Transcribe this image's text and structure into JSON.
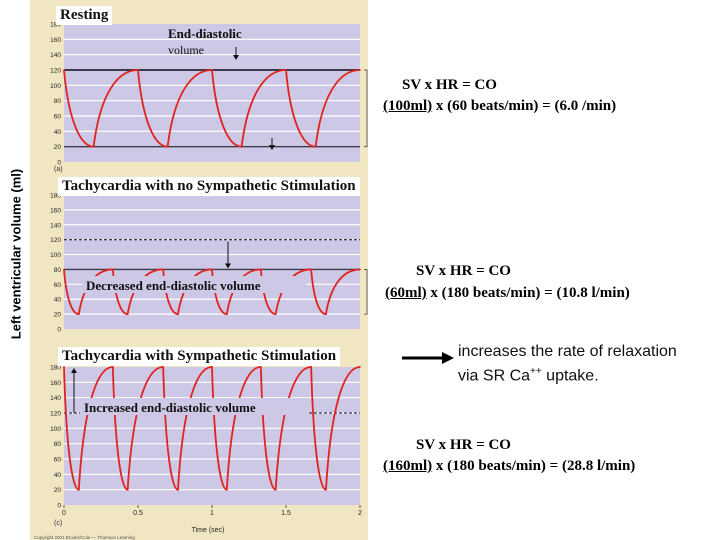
{
  "ylabel": "Left ventricular volume (ml)",
  "xlabel": "Time (sec)",
  "footer": "Copyright 2001 Brooks/Cole — Thomson Learning",
  "arrow_note": {
    "line1": "increases the rate of relaxation",
    "line2_pre": "via SR Ca",
    "line2_sup": "++",
    "line2_post": " uptake."
  },
  "colors": {
    "strip": "#f1e6c2",
    "plot_bg": "#cdc8e6",
    "grid": "#ffffff",
    "curve": "#e0241d",
    "reference": "#3a3a4a"
  },
  "panels": [
    {
      "title": "Resting",
      "annotation": "End-diastolic",
      "annotation2": "volume",
      "letter": "(a)",
      "equation": {
        "line1": "SV  x HR  = CO",
        "sv": "(100ml)",
        "rest": " x (60 beats/min) = (6.0 /min)"
      }
    },
    {
      "title": "Tachycardia with no Sympathetic Stimulation",
      "annotation": "Decreased end-diastolic volume",
      "letter": "(b)",
      "equation": {
        "line1": "SV  x  HR = CO",
        "sv": "(60ml)",
        "rest": " x (180 beats/min) = (10.8 l/min)"
      }
    },
    {
      "title": "Tachycardia with Sympathetic Stimulation",
      "annotation": "Increased end-diastolic volume",
      "letter": "(c)",
      "equation": {
        "line1": "SV x  HR = CO",
        "sv": "(160ml)",
        "rest": " x (180 beats/min) = (28.8 l/min)"
      }
    }
  ],
  "chart_data": [
    {
      "type": "line",
      "title": "Resting",
      "ylabel": "Left ventricular volume (ml)",
      "yticks": [
        0,
        20,
        40,
        60,
        80,
        100,
        120,
        140,
        160,
        180
      ],
      "ylim": [
        0,
        180
      ],
      "xlim": [
        0,
        2
      ],
      "grid": true,
      "reference_lines": [
        120,
        20
      ],
      "series": [
        {
          "x": [
            0,
            0.2,
            0.5,
            0.7,
            1.0,
            1.2,
            1.5,
            1.7,
            2.0
          ],
          "y": [
            120,
            20,
            120,
            20,
            120,
            20,
            120,
            20,
            120
          ]
        }
      ]
    },
    {
      "type": "line",
      "title": "Tachycardia with no Sympathetic Stimulation",
      "yticks": [
        0,
        20,
        40,
        60,
        80,
        100,
        120,
        140,
        160,
        180
      ],
      "ylim": [
        0,
        180
      ],
      "xlim": [
        0,
        2
      ],
      "grid": true,
      "reference_lines": [
        120,
        80
      ],
      "series": [
        {
          "x": [
            0,
            0.1,
            0.33,
            0.43,
            0.67,
            0.77,
            1.0,
            1.1,
            1.33,
            1.43,
            1.67,
            1.77,
            2.0
          ],
          "y": [
            80,
            20,
            80,
            20,
            80,
            20,
            80,
            20,
            80,
            20,
            80,
            20,
            80
          ]
        }
      ]
    },
    {
      "type": "line",
      "title": "Tachycardia with Sympathetic Stimulation",
      "yticks": [
        0,
        20,
        40,
        60,
        80,
        100,
        120,
        140,
        160,
        180
      ],
      "xticks": [
        0,
        0.5,
        1,
        1.5,
        2
      ],
      "ylim": [
        0,
        180
      ],
      "xlim": [
        0,
        2
      ],
      "grid": true,
      "reference_lines": [
        120
      ],
      "series": [
        {
          "x": [
            0,
            0.1,
            0.33,
            0.43,
            0.67,
            0.77,
            1.0,
            1.1,
            1.33,
            1.43,
            1.67,
            1.77,
            2.0
          ],
          "y": [
            180,
            20,
            180,
            20,
            180,
            20,
            180,
            20,
            180,
            20,
            180,
            20,
            180
          ]
        }
      ]
    }
  ]
}
